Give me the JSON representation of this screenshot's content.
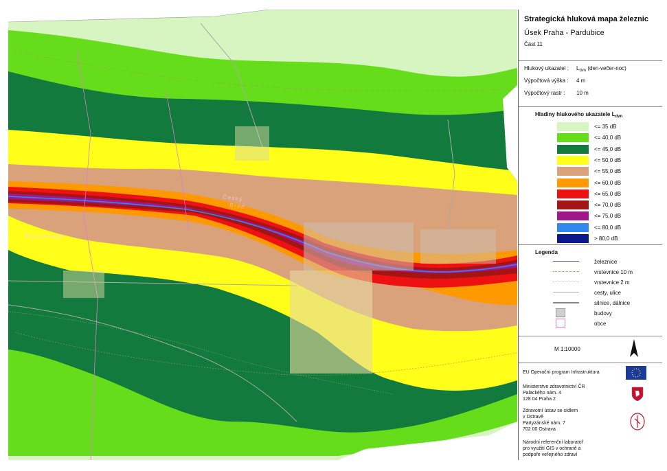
{
  "title": {
    "main": "Strategická hluková mapa železnic",
    "section": "Úsek Praha - Pardubice",
    "part": "Část  11"
  },
  "params": [
    {
      "label": "Hlukový ukazatel  :",
      "value_prefix": "L",
      "value_sub": "dvn",
      "value_suffix": " (den-večer-noc)"
    },
    {
      "label": "Výpočtová výška  :",
      "value": "4 m"
    },
    {
      "label": "Výpočtový rastr  :",
      "value": "10 m"
    }
  ],
  "levels": {
    "heading_prefix": "Hladiny hlukového ukazatele L",
    "heading_sub": "dvn",
    "items": [
      {
        "label": "<= 35 dB",
        "color": "#d6f5c0"
      },
      {
        "label": "<= 40,0 dB",
        "color": "#66dd1a"
      },
      {
        "label": "<= 45,0 dB",
        "color": "#127a3c"
      },
      {
        "label": "<= 50,0 dB",
        "color": "#ffff1a"
      },
      {
        "label": "<= 55,0 dB",
        "color": "#d9a27a"
      },
      {
        "label": "<= 60,0 dB",
        "color": "#ff9900"
      },
      {
        "label": "<= 65,0 dB",
        "color": "#ee1111"
      },
      {
        "label": "<= 70,0 dB",
        "color": "#a31515"
      },
      {
        "label": "<= 75,0 dB",
        "color": "#a0178c"
      },
      {
        "label": "<= 80,0 dB",
        "color": "#3388ee"
      },
      {
        "label": "> 80,0 dB",
        "color": "#0a1a8a"
      }
    ]
  },
  "legend": {
    "heading": "Legenda",
    "items": [
      {
        "label": "železnice",
        "kind": "line",
        "color": "#666666"
      },
      {
        "label": "vrstevnice 10 m",
        "kind": "dotted",
        "color": "#9a9a55"
      },
      {
        "label": "vrstevnice 2 m",
        "kind": "dotted",
        "color": "#cccc99"
      },
      {
        "label": "cesty, ulice",
        "kind": "line",
        "color": "#aaaaaa"
      },
      {
        "label": "silnice, dálnice",
        "kind": "double",
        "color": "#888888"
      },
      {
        "label": "budovy",
        "kind": "box",
        "color": "#d0d0d0"
      },
      {
        "label": "obce",
        "kind": "box-outline",
        "color": "#e47ad0"
      }
    ]
  },
  "scale": "M  1:10000",
  "credits": {
    "program": "EU Operační program Infrastruktura",
    "ministry": [
      "Ministerstvo zdravotnictví ČR",
      "Palackého nám. 4",
      "128 04  Praha 2"
    ],
    "institute": [
      "Zdravotní ústav se sídlem",
      "v Ostravě",
      "Partyzánské nám. 7",
      "702 00  Ostrava"
    ],
    "lab": [
      "Národní referenční laboratoř",
      "pro využití GIS v ochraně a",
      "podpoře veřejného zdraví"
    ]
  },
  "map_labels": {
    "town1_line1": "Český",
    "town1_line2": "Brod",
    "town2": "Rostoklaty"
  }
}
